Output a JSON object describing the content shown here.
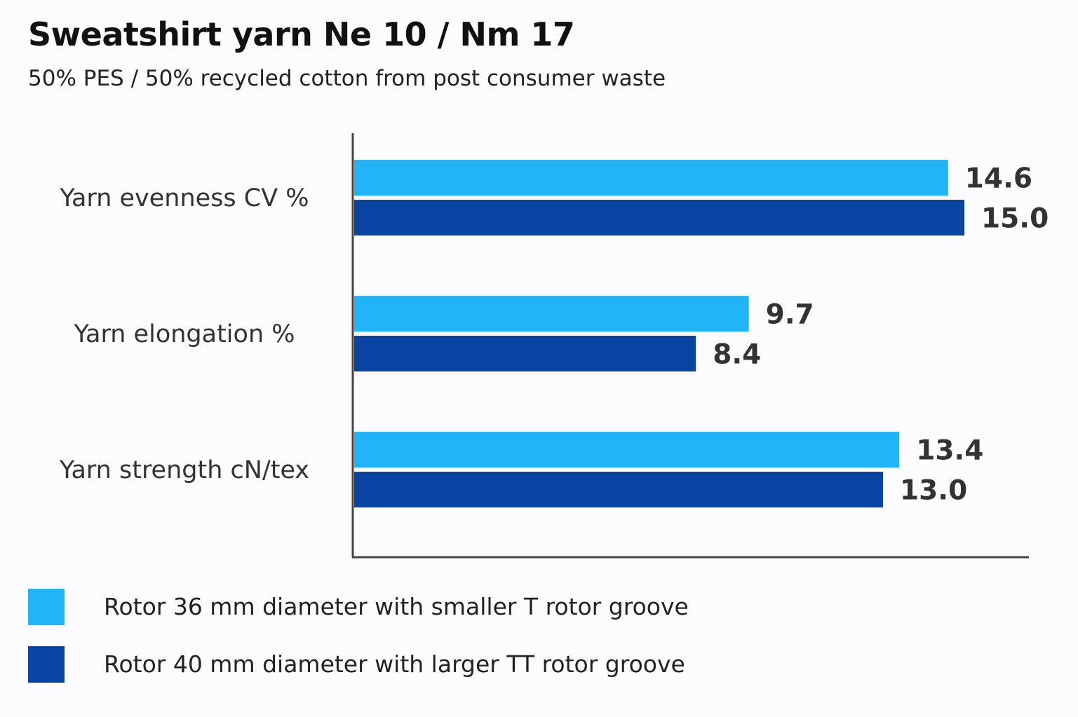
{
  "header": {
    "title": "Sweatshirt yarn Ne 10 / Nm 17",
    "subtitle": "50% PES / 50% recycled cotton from post consumer waste"
  },
  "colors": {
    "series_light": "#21b5f8",
    "series_dark": "#0a44a3",
    "axis": "#444444",
    "background": "#fcfcfe"
  },
  "chart_data": {
    "type": "bar",
    "orientation": "horizontal",
    "title": "Sweatshirt yarn Ne 10 / Nm 17",
    "subtitle": "50% PES / 50% recycled cotton from post consumer waste",
    "categories": [
      "Yarn evenness CV %",
      "Yarn elongation %",
      "Yarn strength cN/tex"
    ],
    "series": [
      {
        "name": "Rotor 36 mm diameter with smaller T rotor groove",
        "color": "#21b5f8",
        "values": [
          14.6,
          9.7,
          13.4
        ],
        "labels": [
          "14.6",
          "9.7",
          "13.4"
        ]
      },
      {
        "name": "Rotor 40 mm diameter with larger TT rotor groove",
        "color": "#0a44a3",
        "values": [
          15.0,
          8.4,
          13.0
        ],
        "labels": [
          "15.0",
          "8.4",
          "13.0"
        ]
      }
    ],
    "xlim": [
      0,
      16.7
    ],
    "grid": false,
    "legend_position": "bottom-left",
    "data_labels": true
  }
}
